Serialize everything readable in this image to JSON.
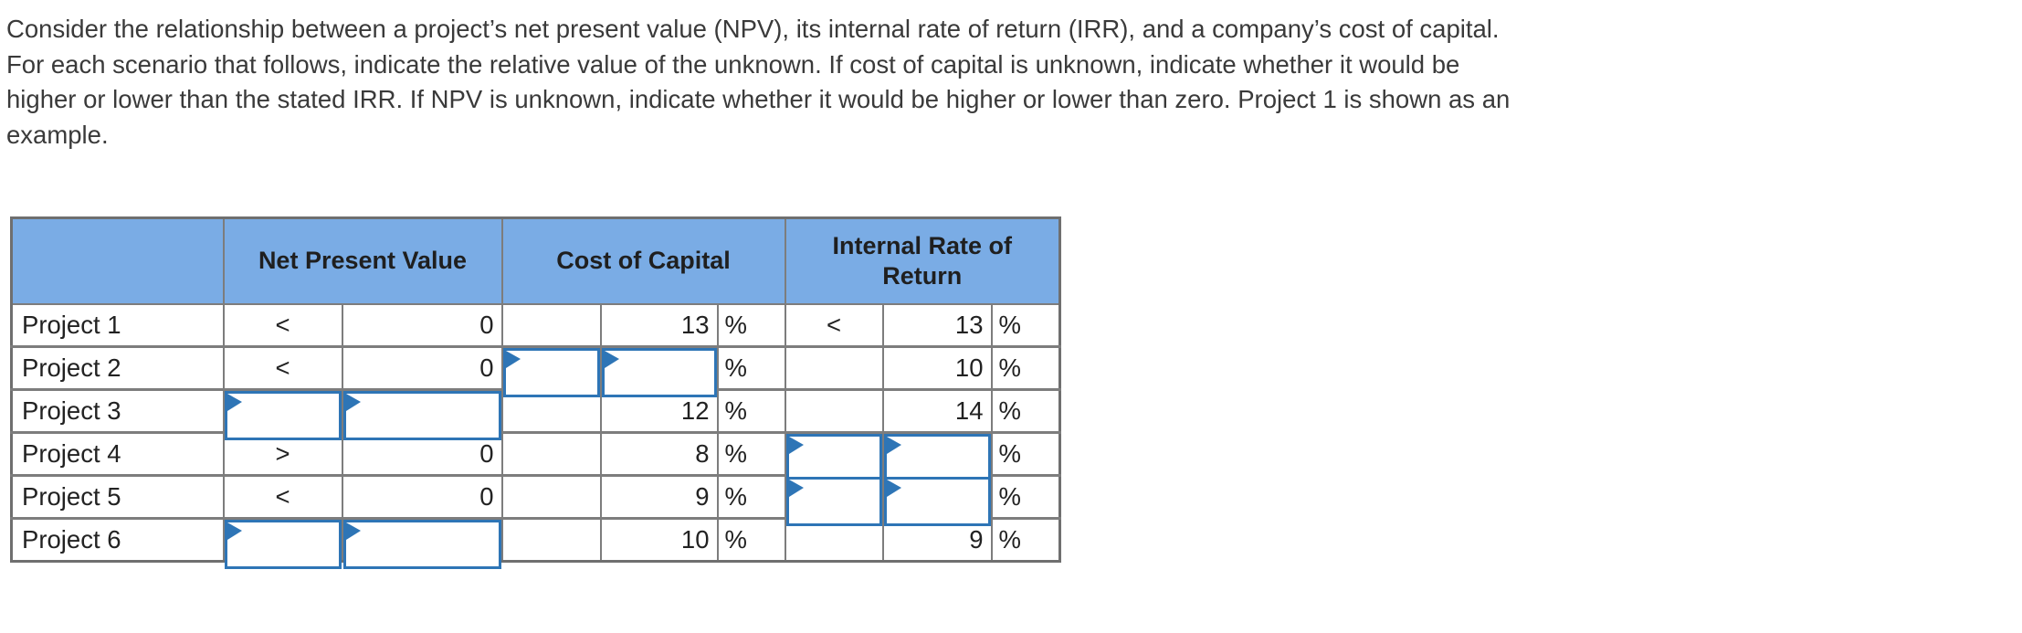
{
  "instructions": {
    "lines": [
      "Consider the relationship between a project’s net present value (NPV), its internal rate of return (IRR), and a company’s cost of capital.",
      "For each scenario that follows, indicate the relative value of the unknown. If cost of capital is unknown, indicate whether it would be",
      "higher or lower than the stated IRR. If NPV is unknown, indicate whether it would be higher or lower than zero. Project 1 is shown as an",
      "example."
    ]
  },
  "table": {
    "headers": {
      "project": "",
      "npv": "Net Present Value",
      "coc": "Cost of Capital",
      "irr": "Internal Rate of Return"
    },
    "percent_sign": "%",
    "rows": [
      {
        "label": "Project 1",
        "npv_op": "<",
        "npv_val": "0",
        "npv_input": false,
        "coc_op": "",
        "coc_val": "13",
        "coc_input": false,
        "irr_op": "<",
        "irr_val": "13",
        "irr_input": false
      },
      {
        "label": "Project 2",
        "npv_op": "<",
        "npv_val": "0",
        "npv_input": false,
        "coc_op": "",
        "coc_val": "",
        "coc_input": true,
        "irr_op": "",
        "irr_val": "10",
        "irr_input": false
      },
      {
        "label": "Project 3",
        "npv_op": "",
        "npv_val": "",
        "npv_input": true,
        "coc_op": "",
        "coc_val": "12",
        "coc_input": false,
        "irr_op": "",
        "irr_val": "14",
        "irr_input": false
      },
      {
        "label": "Project 4",
        "npv_op": ">",
        "npv_val": "0",
        "npv_input": false,
        "coc_op": "",
        "coc_val": "8",
        "coc_input": false,
        "irr_op": "",
        "irr_val": "",
        "irr_input": true
      },
      {
        "label": "Project 5",
        "npv_op": "<",
        "npv_val": "0",
        "npv_input": false,
        "coc_op": "",
        "coc_val": "9",
        "coc_input": false,
        "irr_op": "",
        "irr_val": "",
        "irr_input": true
      },
      {
        "label": "Project 6",
        "npv_op": "",
        "npv_val": "",
        "npv_input": true,
        "coc_op": "",
        "coc_val": "10",
        "coc_input": false,
        "irr_op": "",
        "irr_val": "9",
        "irr_input": false
      }
    ],
    "colors": {
      "header_bg": "#7aace5",
      "grid_border": "#7d7d7d",
      "input_border": "#2e75b6",
      "header_text": "#1f1f1f"
    }
  }
}
